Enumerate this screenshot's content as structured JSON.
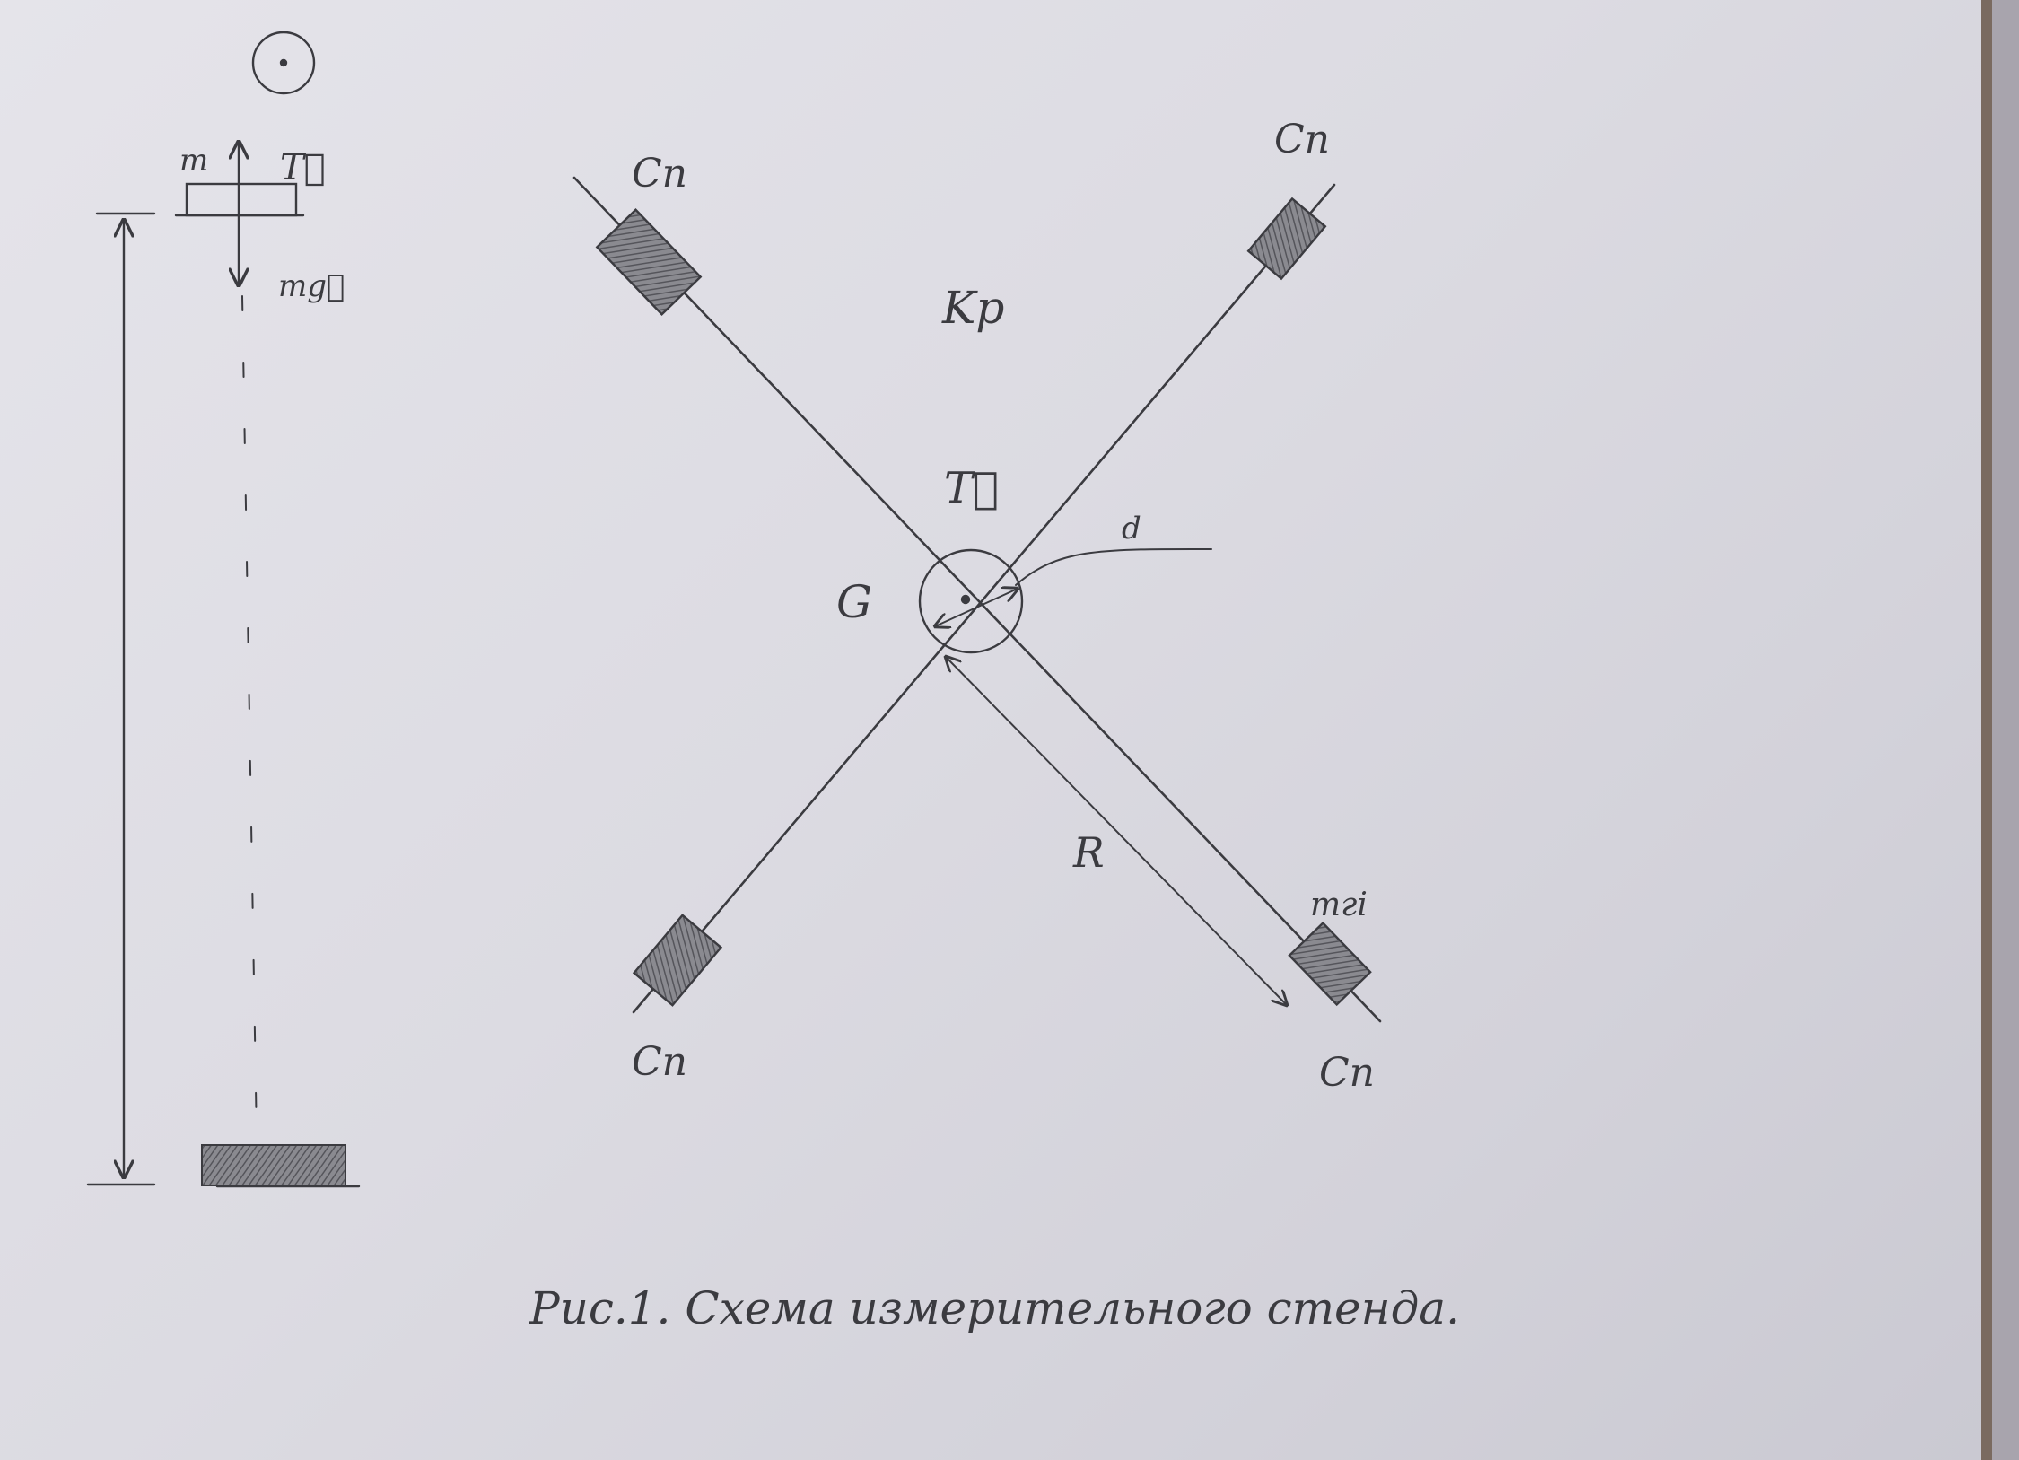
{
  "drawing": {
    "fall_diagram": {
      "mass_label": "m",
      "tension_label": "T⃗",
      "weight_label": "mg⃗"
    },
    "stand": {
      "body_label": "Kp",
      "tension_label": "T⃗",
      "axis_label": "G",
      "diameter_label": "d",
      "radius_label": "R",
      "load_label": "mгi",
      "weight_labels": [
        "Cn",
        "Cn",
        "Cn",
        "Cn"
      ]
    },
    "caption": "Рис.1. Схема измерительного стенда."
  },
  "colors": {
    "paper": "#dddce3",
    "pencil": "#3b3b40",
    "shading": "#6f6f75"
  }
}
